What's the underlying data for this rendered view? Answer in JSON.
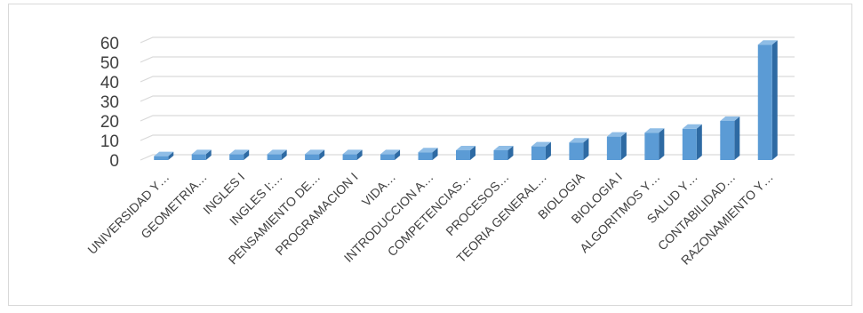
{
  "chart_data": {
    "type": "bar",
    "style": "3d-column",
    "categories": [
      "UNIVERSIDAD Y…",
      "GEOMETRIA…",
      "INGLES I",
      "INGLES I:…",
      "PENSAMIENTO DE…",
      "PROGRAMACION I",
      "VIDA…",
      "INTRODUCCION A…",
      "COMPETENCIAS…",
      "PROCESOS…",
      "TEORIA GENERAL…",
      "BIOLOGIA",
      "BIOLOGIA I",
      "ALGORITMOS Y…",
      "SALUD Y…",
      "CONTABILIDAD…",
      "RAZONAMIENTO Y…"
    ],
    "values": [
      2,
      3,
      3,
      3,
      3,
      3,
      3,
      4,
      5,
      5,
      7,
      9,
      12,
      14,
      16,
      20,
      59
    ],
    "y_ticks": [
      0,
      10,
      20,
      30,
      40,
      50,
      60
    ],
    "ylim": [
      0,
      60
    ],
    "grid": true,
    "legend": "none",
    "title": "",
    "xlabel": "",
    "ylabel": "",
    "colors": {
      "bar_front": "#5b9bd5",
      "bar_top": "#8fbde6",
      "bar_side": "#2e6aa3",
      "grid": "#d9d9d9",
      "text": "#404040"
    }
  }
}
